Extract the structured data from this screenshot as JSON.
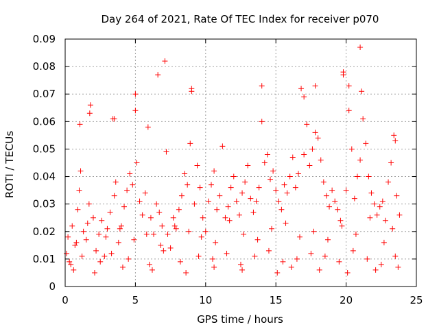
{
  "chart_data": {
    "type": "scatter",
    "title": "Day 264 of 2021, Rate Of TEC Index for receiver p070",
    "xlabel": "GPS time / hours",
    "ylabel": "ROTI / TECUs",
    "xlim": [
      0,
      25
    ],
    "ylim": [
      0,
      0.09
    ],
    "x_ticks": [
      0,
      5,
      10,
      15,
      20,
      25
    ],
    "y_ticks": [
      0,
      0.01,
      0.02,
      0.03,
      0.04,
      0.05,
      0.06,
      0.07,
      0.08,
      0.09
    ],
    "x_tick_labels": [
      "0",
      "5",
      "10",
      "15",
      "20",
      "25"
    ],
    "y_tick_labels": [
      "0",
      "0.01",
      "0.02",
      "0.03",
      "0.04",
      "0.05",
      "0.06",
      "0.07",
      "0.08",
      "0.09"
    ],
    "grid": true,
    "marker": "+",
    "color": "#ff0000",
    "series": [
      {
        "name": "ROTI",
        "x": [
          0.1,
          0.2,
          0.3,
          0.5,
          0.7,
          0.9,
          1.0,
          1.1,
          1.3,
          1.5,
          1.7,
          1.8,
          2.0,
          2.2,
          2.4,
          2.6,
          2.8,
          3.0,
          3.2,
          3.4,
          3.5,
          3.6,
          3.8,
          4.0,
          4.2,
          4.4,
          4.6,
          4.8,
          5.0,
          5.1,
          5.3,
          5.5,
          5.7,
          5.9,
          6.1,
          6.3,
          6.5,
          6.7,
          6.9,
          7.1,
          7.3,
          7.5,
          7.7,
          7.9,
          8.1,
          8.3,
          8.5,
          8.7,
          8.9,
          9.0,
          9.2,
          9.4,
          9.6,
          9.8,
          10.0,
          10.2,
          10.4,
          10.6,
          10.8,
          11.0,
          11.2,
          11.4,
          11.6,
          11.8,
          12.0,
          12.2,
          12.4,
          12.6,
          12.8,
          13.0,
          13.2,
          13.4,
          13.6,
          13.8,
          14.0,
          14.2,
          14.4,
          14.6,
          14.8,
          15.0,
          15.2,
          15.4,
          15.6,
          15.8,
          16.0,
          16.2,
          16.4,
          16.6,
          16.8,
          17.0,
          17.2,
          17.4,
          17.6,
          17.8,
          18.0,
          18.2,
          18.4,
          18.6,
          18.8,
          19.0,
          19.2,
          19.4,
          19.6,
          19.8,
          20.0,
          20.2,
          20.4,
          20.6,
          20.8,
          21.0,
          21.2,
          21.4,
          21.6,
          21.8,
          22.0,
          22.2,
          22.4,
          22.6,
          22.8,
          23.0,
          23.2,
          23.4,
          23.6,
          23.8,
          0.4,
          1.2,
          2.5,
          3.3,
          4.5,
          6.0,
          7.0,
          8.2,
          9.5,
          10.5,
          11.5,
          12.5,
          13.5,
          14.5,
          15.5,
          16.5,
          17.5,
          18.5,
          19.5,
          20.5,
          21.5,
          22.5,
          23.5,
          1.05,
          1.75,
          3.5,
          5.0,
          6.6,
          7.2,
          9.0,
          14.0,
          17.0,
          17.8,
          19.8,
          20.2,
          21.0,
          21.1,
          23.5,
          0.6,
          2.1,
          4.1,
          6.2,
          8.6,
          10.6,
          12.6,
          15.1,
          16.1,
          18.1,
          20.1,
          22.1,
          23.7,
          0.8,
          1.6,
          2.9,
          3.9,
          4.9,
          5.8,
          6.8,
          7.8,
          8.8,
          9.7,
          10.7,
          11.7,
          12.7,
          13.7,
          14.7,
          15.7,
          16.7,
          17.7,
          18.7,
          19.7,
          20.7,
          21.7,
          22.7,
          23.3
        ],
        "y": [
          0.012,
          0.018,
          0.009,
          0.022,
          0.015,
          0.028,
          0.035,
          0.042,
          0.02,
          0.017,
          0.03,
          0.066,
          0.025,
          0.013,
          0.019,
          0.024,
          0.011,
          0.021,
          0.027,
          0.061,
          0.033,
          0.038,
          0.016,
          0.022,
          0.029,
          0.035,
          0.041,
          0.037,
          0.07,
          0.045,
          0.031,
          0.026,
          0.034,
          0.058,
          0.025,
          0.019,
          0.03,
          0.027,
          0.022,
          0.082,
          0.019,
          0.014,
          0.025,
          0.021,
          0.028,
          0.033,
          0.041,
          0.037,
          0.052,
          0.071,
          0.03,
          0.044,
          0.036,
          0.025,
          0.02,
          0.031,
          0.037,
          0.042,
          0.028,
          0.033,
          0.051,
          0.025,
          0.029,
          0.036,
          0.04,
          0.031,
          0.026,
          0.034,
          0.038,
          0.044,
          0.032,
          0.027,
          0.031,
          0.036,
          0.073,
          0.045,
          0.048,
          0.039,
          0.042,
          0.035,
          0.031,
          0.028,
          0.037,
          0.034,
          0.04,
          0.047,
          0.036,
          0.041,
          0.072,
          0.048,
          0.059,
          0.044,
          0.05,
          0.073,
          0.054,
          0.046,
          0.038,
          0.033,
          0.029,
          0.035,
          0.031,
          0.028,
          0.024,
          0.077,
          0.035,
          0.073,
          0.05,
          0.032,
          0.04,
          0.087,
          0.061,
          0.052,
          0.04,
          0.034,
          0.03,
          0.026,
          0.029,
          0.031,
          0.024,
          0.038,
          0.045,
          0.055,
          0.033,
          0.026,
          0.008,
          0.011,
          0.009,
          0.012,
          0.01,
          0.008,
          0.013,
          0.009,
          0.011,
          0.01,
          0.012,
          0.008,
          0.011,
          0.013,
          0.009,
          0.01,
          0.012,
          0.011,
          0.009,
          0.013,
          0.01,
          0.008,
          0.011,
          0.059,
          0.063,
          0.061,
          0.064,
          0.077,
          0.049,
          0.072,
          0.06,
          0.069,
          0.056,
          0.078,
          0.064,
          0.046,
          0.071,
          0.053,
          0.006,
          0.005,
          0.007,
          0.006,
          0.005,
          0.007,
          0.006,
          0.005,
          0.007,
          0.006,
          0.005,
          0.006,
          0.007,
          0.016,
          0.023,
          0.018,
          0.021,
          0.017,
          0.019,
          0.015,
          0.022,
          0.02,
          0.018,
          0.016,
          0.024,
          0.019,
          0.017,
          0.021,
          0.023,
          0.018,
          0.02,
          0.017,
          0.022,
          0.019,
          0.025,
          0.016,
          0.021
        ]
      }
    ]
  }
}
